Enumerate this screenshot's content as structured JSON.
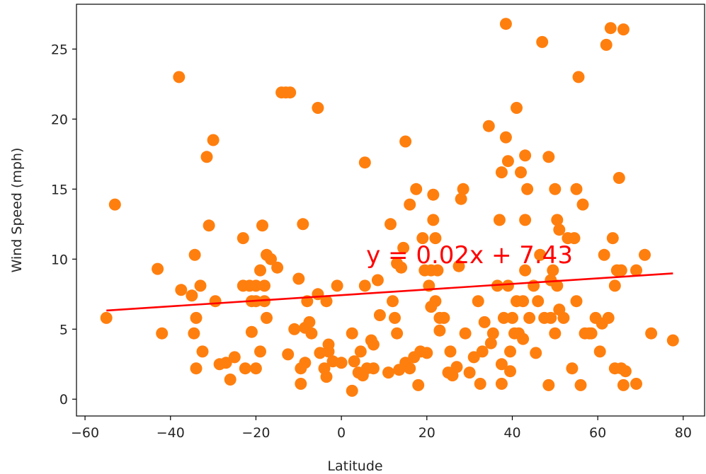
{
  "chart_data": {
    "type": "scatter",
    "title": "",
    "xlabel": "Latitude",
    "ylabel": "Wind Speed (mph)",
    "xlim": [
      -62,
      85
    ],
    "ylim": [
      -1.2,
      28.2
    ],
    "xticks": [
      -60,
      -40,
      -20,
      0,
      20,
      40,
      60,
      80
    ],
    "xtick_labels": [
      "−60",
      "−40",
      "−20",
      "0",
      "20",
      "40",
      "60",
      "80"
    ],
    "yticks": [
      0,
      5,
      10,
      15,
      20,
      25
    ],
    "ytick_labels": [
      "0",
      "5",
      "10",
      "15",
      "20",
      "25"
    ],
    "grid": false,
    "legend": "none",
    "marker_color": "#ff7f0e",
    "line_color": "#ff0000",
    "regression": {
      "slope": 0.02,
      "intercept": 7.43,
      "x_range": [
        -55.0,
        77.6
      ]
    },
    "annotation": {
      "text": "y = 0.02x + 7.43",
      "x": 5.8,
      "y": 9.7
    },
    "points": [
      [
        -55.0,
        5.8
      ],
      [
        -53.0,
        13.9
      ],
      [
        -43.0,
        9.3
      ],
      [
        -42.0,
        4.7
      ],
      [
        -38.0,
        23.0
      ],
      [
        -37.5,
        7.8
      ],
      [
        -35.0,
        7.4
      ],
      [
        -34.5,
        4.7
      ],
      [
        -34.3,
        10.3
      ],
      [
        -34.0,
        5.8
      ],
      [
        -34.0,
        2.2
      ],
      [
        -33.0,
        8.1
      ],
      [
        -32.5,
        3.4
      ],
      [
        -31.5,
        17.3
      ],
      [
        -31.0,
        12.4
      ],
      [
        -30.0,
        18.5
      ],
      [
        -29.5,
        7.0
      ],
      [
        -28.5,
        2.5
      ],
      [
        -27.0,
        2.6
      ],
      [
        -26.0,
        1.4
      ],
      [
        -25.0,
        3.0
      ],
      [
        -23.0,
        11.5
      ],
      [
        -23.0,
        8.1
      ],
      [
        -22.5,
        2.2
      ],
      [
        -21.5,
        8.1
      ],
      [
        -21.0,
        4.8
      ],
      [
        -21.0,
        7.0
      ],
      [
        -20.0,
        8.1
      ],
      [
        -20.0,
        7.0
      ],
      [
        -20.0,
        2.2
      ],
      [
        -19.0,
        3.4
      ],
      [
        -19.0,
        9.2
      ],
      [
        -18.5,
        12.4
      ],
      [
        -18.0,
        7.0
      ],
      [
        -18.0,
        8.1
      ],
      [
        -17.5,
        10.3
      ],
      [
        -17.5,
        5.8
      ],
      [
        -16.5,
        10.0
      ],
      [
        -15.0,
        9.4
      ],
      [
        -14.0,
        21.9
      ],
      [
        -13.0,
        21.9
      ],
      [
        -12.5,
        3.2
      ],
      [
        -12.0,
        21.9
      ],
      [
        -11.0,
        5.0
      ],
      [
        -10.0,
        8.6
      ],
      [
        -9.5,
        1.1
      ],
      [
        -9.5,
        2.2
      ],
      [
        -9.0,
        12.5
      ],
      [
        -8.5,
        5.1
      ],
      [
        -8.5,
        2.6
      ],
      [
        -8.0,
        7.0
      ],
      [
        -7.5,
        5.5
      ],
      [
        -7.0,
        4.7
      ],
      [
        -5.5,
        20.8
      ],
      [
        -5.5,
        7.5
      ],
      [
        -5.0,
        3.3
      ],
      [
        -4.0,
        2.2
      ],
      [
        -3.5,
        1.6
      ],
      [
        -3.5,
        7.0
      ],
      [
        -3.0,
        3.9
      ],
      [
        -3.0,
        3.4
      ],
      [
        -2.0,
        2.7
      ],
      [
        -1.0,
        8.1
      ],
      [
        0.0,
        2.6
      ],
      [
        2.5,
        0.6
      ],
      [
        2.5,
        4.7
      ],
      [
        3.0,
        2.7
      ],
      [
        4.0,
        1.9
      ],
      [
        4.5,
        3.4
      ],
      [
        5.0,
        1.7
      ],
      [
        5.5,
        16.9
      ],
      [
        5.5,
        8.1
      ],
      [
        6.0,
        2.2
      ],
      [
        7.0,
        4.2
      ],
      [
        7.5,
        2.2
      ],
      [
        7.5,
        3.9
      ],
      [
        8.5,
        8.5
      ],
      [
        9.0,
        6.0
      ],
      [
        11.0,
        1.9
      ],
      [
        11.5,
        12.5
      ],
      [
        12.0,
        7.0
      ],
      [
        12.5,
        5.8
      ],
      [
        13.0,
        9.7
      ],
      [
        13.0,
        4.7
      ],
      [
        13.5,
        2.1
      ],
      [
        14.0,
        9.4
      ],
      [
        14.5,
        10.8
      ],
      [
        15.0,
        18.4
      ],
      [
        15.0,
        2.6
      ],
      [
        16.0,
        13.9
      ],
      [
        16.0,
        2.2
      ],
      [
        17.0,
        3.0
      ],
      [
        17.5,
        15.0
      ],
      [
        18.0,
        1.0
      ],
      [
        18.5,
        3.4
      ],
      [
        19.0,
        11.5
      ],
      [
        19.5,
        9.2
      ],
      [
        20.0,
        3.3
      ],
      [
        20.5,
        8.1
      ],
      [
        21.0,
        6.6
      ],
      [
        21.0,
        9.2
      ],
      [
        21.5,
        12.8
      ],
      [
        21.5,
        14.6
      ],
      [
        22.0,
        11.5
      ],
      [
        22.0,
        7.0
      ],
      [
        22.5,
        9.2
      ],
      [
        23.0,
        5.8
      ],
      [
        23.0,
        4.9
      ],
      [
        24.0,
        5.8
      ],
      [
        25.0,
        1.9
      ],
      [
        25.5,
        3.4
      ],
      [
        26.0,
        1.7
      ],
      [
        27.0,
        2.3
      ],
      [
        27.5,
        9.5
      ],
      [
        28.0,
        14.3
      ],
      [
        28.5,
        15.0
      ],
      [
        29.0,
        4.7
      ],
      [
        30.0,
        1.9
      ],
      [
        31.0,
        3.0
      ],
      [
        32.0,
        7.0
      ],
      [
        32.5,
        1.1
      ],
      [
        33.0,
        3.4
      ],
      [
        33.5,
        5.5
      ],
      [
        34.5,
        19.5
      ],
      [
        35.0,
        4.0
      ],
      [
        35.5,
        4.7
      ],
      [
        36.5,
        8.1
      ],
      [
        37.0,
        12.8
      ],
      [
        37.5,
        16.2
      ],
      [
        37.5,
        2.5
      ],
      [
        37.5,
        1.1
      ],
      [
        38.0,
        5.8
      ],
      [
        38.5,
        26.8
      ],
      [
        38.5,
        18.7
      ],
      [
        39.0,
        17.0
      ],
      [
        39.0,
        8.1
      ],
      [
        39.5,
        2.0
      ],
      [
        39.5,
        3.4
      ],
      [
        40.0,
        5.8
      ],
      [
        40.5,
        4.7
      ],
      [
        41.0,
        7.0
      ],
      [
        41.0,
        20.8
      ],
      [
        41.5,
        4.7
      ],
      [
        42.0,
        16.2
      ],
      [
        42.5,
        4.3
      ],
      [
        42.5,
        7.0
      ],
      [
        43.0,
        12.8
      ],
      [
        43.0,
        17.4
      ],
      [
        43.0,
        9.2
      ],
      [
        43.5,
        15.0
      ],
      [
        44.0,
        5.8
      ],
      [
        45.0,
        8.1
      ],
      [
        45.5,
        3.3
      ],
      [
        46.0,
        7.0
      ],
      [
        46.5,
        10.3
      ],
      [
        47.0,
        25.5
      ],
      [
        47.5,
        5.8
      ],
      [
        48.5,
        1.0
      ],
      [
        48.5,
        17.3
      ],
      [
        49.0,
        5.8
      ],
      [
        49.0,
        8.5
      ],
      [
        49.5,
        9.2
      ],
      [
        50.0,
        15.0
      ],
      [
        50.0,
        4.7
      ],
      [
        50.5,
        8.1
      ],
      [
        50.5,
        12.8
      ],
      [
        51.0,
        6.4
      ],
      [
        51.0,
        12.1
      ],
      [
        52.0,
        5.8
      ],
      [
        53.0,
        11.5
      ],
      [
        54.0,
        2.2
      ],
      [
        54.5,
        11.5
      ],
      [
        55.0,
        7.0
      ],
      [
        55.0,
        15.0
      ],
      [
        55.5,
        23.0
      ],
      [
        56.0,
        1.0
      ],
      [
        56.5,
        13.9
      ],
      [
        57.0,
        4.7
      ],
      [
        58.0,
        4.7
      ],
      [
        58.5,
        4.7
      ],
      [
        59.5,
        5.8
      ],
      [
        60.5,
        3.4
      ],
      [
        61.0,
        5.4
      ],
      [
        61.5,
        10.3
      ],
      [
        62.0,
        25.3
      ],
      [
        62.5,
        5.8
      ],
      [
        63.0,
        26.5
      ],
      [
        63.5,
        11.5
      ],
      [
        64.0,
        2.2
      ],
      [
        64.0,
        8.1
      ],
      [
        64.5,
        9.2
      ],
      [
        65.0,
        15.8
      ],
      [
        65.5,
        9.2
      ],
      [
        65.5,
        2.2
      ],
      [
        66.0,
        1.0
      ],
      [
        66.0,
        26.4
      ],
      [
        66.5,
        2.0
      ],
      [
        69.0,
        9.2
      ],
      [
        69.0,
        1.1
      ],
      [
        71.0,
        10.3
      ],
      [
        72.5,
        4.7
      ],
      [
        77.6,
        4.2
      ]
    ]
  }
}
